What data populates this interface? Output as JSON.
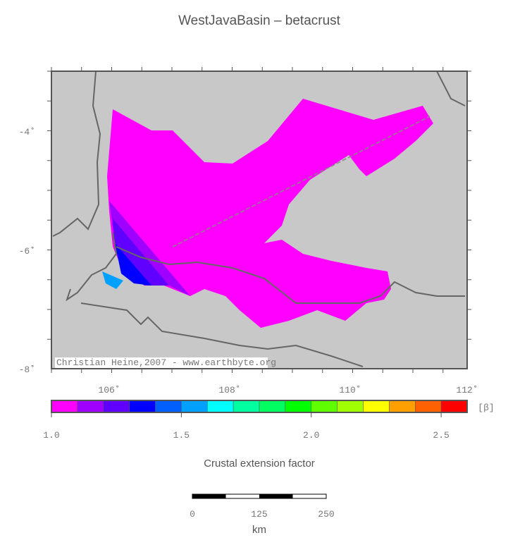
{
  "title": "WestJavaBasin – betacrust",
  "map": {
    "lon_ticks": [
      "106˚",
      "108˚",
      "110˚",
      "112˚"
    ],
    "lat_ticks": [
      "-4˚",
      "-6˚",
      "-8˚"
    ],
    "credit": "Christian Heine,2007 - www.earthbyte.org"
  },
  "colorbar": {
    "colors": [
      "#ff00ff",
      "#a000ff",
      "#6000ff",
      "#0000ff",
      "#0060ff",
      "#00a0ff",
      "#00ffff",
      "#00ffa0",
      "#00ff60",
      "#00ff00",
      "#60ff00",
      "#a0ff00",
      "#ffff00",
      "#ffa000",
      "#ff6000",
      "#ff0000"
    ],
    "labels": [
      "1.0",
      "1.5",
      "2.0",
      "2.5"
    ],
    "unit": "[β]",
    "caption": "Crustal extension factor"
  },
  "scale_bar": {
    "labels": [
      "0",
      "125",
      "250"
    ],
    "unit": "km"
  }
}
